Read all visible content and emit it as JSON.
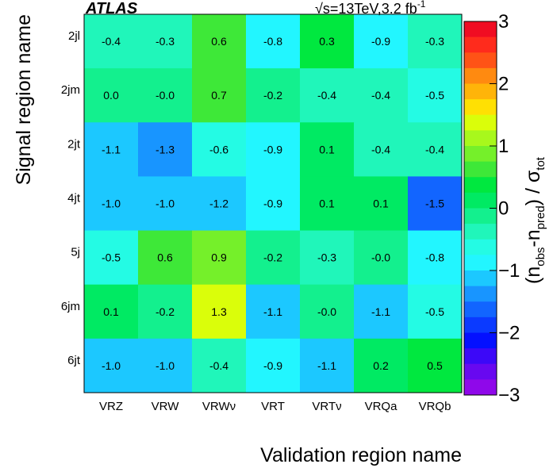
{
  "chart_data": {
    "type": "heatmap",
    "experiment_label": "ATLAS",
    "energy_label": "√s=13TeV,3.2 fb",
    "energy_label_sup": "-1",
    "xlabel": "Validation region name",
    "ylabel": "Signal region name",
    "zlabel": {
      "prefix": "(n",
      "sub1": "obs",
      "mid": "-n",
      "sub2": "pred",
      "suffix": ") / σ",
      "sub3": "tot"
    },
    "x_categories": [
      "VRZ",
      "VRW",
      "VRWν",
      "VRT",
      "VRTν",
      "VRQa",
      "VRQb"
    ],
    "y_categories": [
      "2jl",
      "2jm",
      "2jt",
      "4jt",
      "5j",
      "6jm",
      "6jt"
    ],
    "value_labels": [
      [
        "-0.4",
        "-0.3",
        "0.6",
        "-0.8",
        "0.3",
        "-0.9",
        "-0.3"
      ],
      [
        "0.0",
        "-0.0",
        "0.7",
        "-0.2",
        "-0.4",
        "-0.4",
        "-0.5"
      ],
      [
        "-1.1",
        "-1.3",
        "-0.6",
        "-0.9",
        "0.1",
        "-0.4",
        "-0.4"
      ],
      [
        "-1.0",
        "-1.0",
        "-1.2",
        "-0.9",
        "0.1",
        "0.1",
        "-1.5"
      ],
      [
        "-0.5",
        "0.6",
        "0.9",
        "-0.2",
        "-0.3",
        "-0.0",
        "-0.8"
      ],
      [
        "0.1",
        "-0.2",
        "1.3",
        "-1.1",
        "-0.0",
        "-1.1",
        "-0.5"
      ],
      [
        "-1.0",
        "-1.0",
        "-0.4",
        "-0.9",
        "-1.1",
        "0.2",
        "0.5"
      ]
    ],
    "values": [
      [
        -0.4,
        -0.3,
        0.6,
        -0.8,
        0.3,
        -0.9,
        -0.3
      ],
      [
        0.0,
        -0.0,
        0.7,
        -0.2,
        -0.4,
        -0.4,
        -0.5
      ],
      [
        -1.1,
        -1.3,
        -0.6,
        -0.9,
        0.1,
        -0.4,
        -0.4
      ],
      [
        -1.0,
        -1.0,
        -1.2,
        -0.9,
        0.1,
        0.1,
        -1.5
      ],
      [
        -0.5,
        0.6,
        0.9,
        -0.2,
        -0.3,
        -0.0,
        -0.8
      ],
      [
        0.1,
        -0.2,
        1.3,
        -1.1,
        -0.0,
        -1.1,
        -0.5
      ],
      [
        -1.0,
        -1.0,
        -0.4,
        -0.9,
        -1.1,
        0.2,
        0.5
      ]
    ],
    "zlim": [
      -3,
      3
    ],
    "z_ticks": [
      "3",
      "2",
      "1",
      "0",
      "−1",
      "−2",
      "−3"
    ],
    "colorbar_colors": [
      "#f00c22",
      "#ff2b1c",
      "#ff5316",
      "#ff8a10",
      "#ffb409",
      "#ffe003",
      "#dafe0a",
      "#a8f81c",
      "#75f02a",
      "#3ee838",
      "#00e83f",
      "#00ea63",
      "#13f08e",
      "#20f6ba",
      "#24fbe4",
      "#22f6ff",
      "#1cc8ff",
      "#1895ff",
      "#1265ff",
      "#0b3aff",
      "#0410ff",
      "#3c08f8",
      "#6808f0",
      "#8f08ea"
    ]
  }
}
